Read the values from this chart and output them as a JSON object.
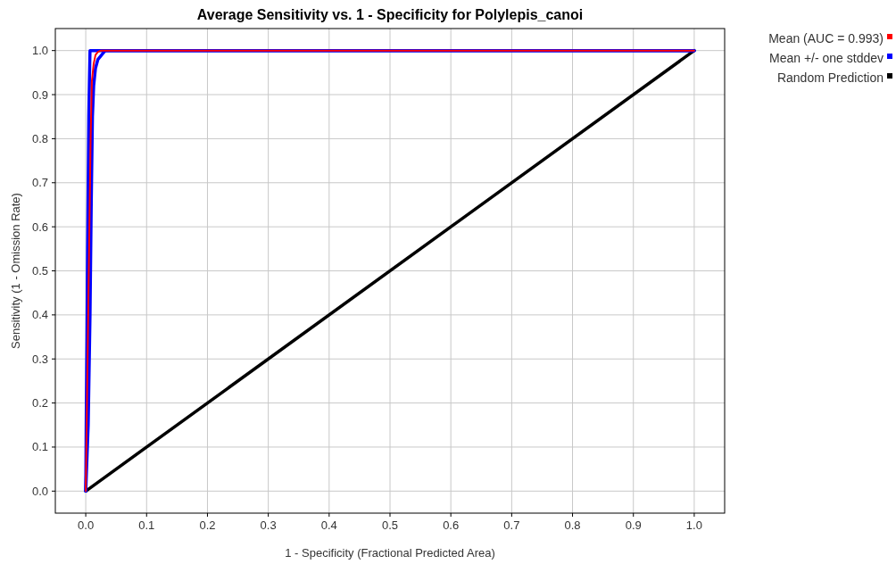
{
  "chart_data": {
    "type": "line",
    "title": "Average Sensitivity vs. 1 - Specificity for Polylepis_canoi",
    "xlabel": "1 - Specificity (Fractional Predicted Area)",
    "ylabel": "Sensitivity (1 - Omission Rate)",
    "xlim": [
      -0.05,
      1.05
    ],
    "ylim": [
      -0.05,
      1.05
    ],
    "xticks": [
      {
        "value": 0,
        "label": "0.0"
      },
      0.1,
      0.2,
      0.3,
      0.4,
      0.5,
      0.6,
      0.7,
      0.8,
      0.9,
      {
        "value": 1,
        "label": "1.0"
      }
    ],
    "yticks": [
      {
        "value": 0,
        "label": "0.0"
      },
      0.1,
      0.2,
      0.3,
      0.4,
      0.5,
      0.6,
      0.7,
      0.8,
      0.9,
      {
        "value": 1,
        "label": "1.0"
      }
    ],
    "grid": true,
    "legend": "top right",
    "marker": "none",
    "line_style": "solid",
    "series": [
      {
        "name": "Mean (AUC = 0.993)",
        "color": "#ff0000",
        "x": [
          0,
          0.003,
          0.005,
          0.007,
          0.008,
          0.01,
          0.013,
          0.016,
          0.02,
          0.025,
          1
        ],
        "values": [
          0,
          0.3,
          0.5,
          0.7,
          0.8,
          0.93,
          0.97,
          0.99,
          0.997,
          1,
          1
        ]
      },
      {
        "name": "Mean +/- one stddev",
        "color": "#0000ff",
        "x": [
          0,
          0.001,
          0.002,
          0.003,
          0.004,
          0.005,
          0.006,
          0.007,
          1
        ],
        "values": [
          0,
          0.2,
          0.35,
          0.55,
          0.7,
          0.85,
          0.93,
          1,
          1
        ]
      },
      {
        "color": "#0000ff",
        "x": [
          0,
          0.004,
          0.007,
          0.009,
          0.011,
          0.013,
          0.016,
          0.02,
          0.026,
          0.032,
          1
        ],
        "values": [
          0,
          0.15,
          0.4,
          0.65,
          0.85,
          0.92,
          0.96,
          0.98,
          0.99,
          1,
          1
        ]
      },
      {
        "name": "Random Prediction",
        "color": "#000000",
        "x": [
          0,
          1
        ],
        "values": [
          0,
          1
        ]
      }
    ]
  }
}
